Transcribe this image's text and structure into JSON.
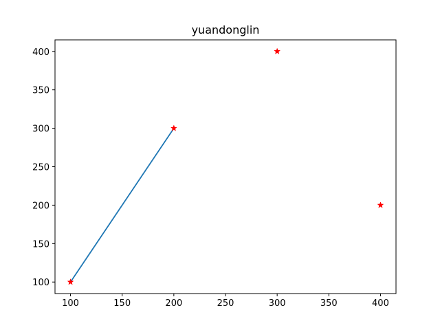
{
  "chart_data": {
    "type": "line",
    "title": "yuandonglin",
    "xlabel": "",
    "ylabel": "",
    "xlim": [
      85,
      415
    ],
    "ylim": [
      85,
      415
    ],
    "xticks": [
      100,
      150,
      200,
      250,
      300,
      350,
      400
    ],
    "yticks": [
      100,
      150,
      200,
      250,
      300,
      350,
      400
    ],
    "grid": false,
    "series": [
      {
        "kind": "line",
        "color": "#1f77b4",
        "x": [
          100,
          200
        ],
        "y": [
          100,
          300
        ]
      },
      {
        "kind": "scatter",
        "marker": "star",
        "color": "#ff0000",
        "x": [
          100,
          200,
          300,
          400
        ],
        "y": [
          100,
          300,
          400,
          200
        ]
      }
    ]
  }
}
